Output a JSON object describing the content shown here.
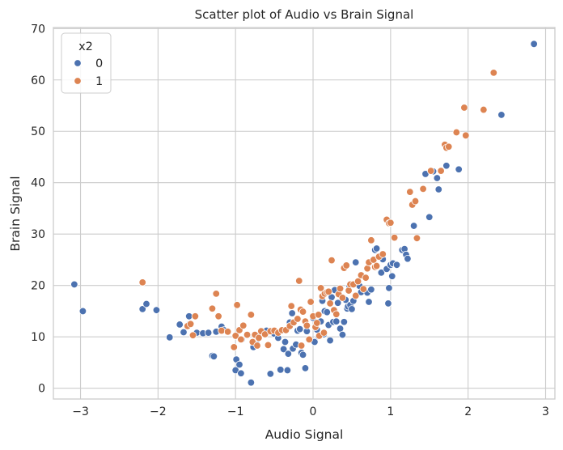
{
  "chart_data": {
    "type": "scatter",
    "title": "Scatter plot of Audio vs Brain Signal",
    "xlabel": "Audio Signal",
    "ylabel": "Brain Signal",
    "xlim": [
      -3.35,
      3.12
    ],
    "ylim": [
      -2.1,
      70.2
    ],
    "xticks": [
      -3,
      -2,
      -1,
      0,
      1,
      2,
      3
    ],
    "xtick_labels": [
      "−3",
      "−2",
      "−1",
      "0",
      "1",
      "2",
      "3"
    ],
    "yticks": [
      0,
      10,
      20,
      30,
      40,
      50,
      60,
      70
    ],
    "ytick_labels": [
      "0",
      "10",
      "20",
      "30",
      "40",
      "50",
      "60",
      "70"
    ],
    "grid": true,
    "legend": {
      "title": "x2",
      "placement": "top-left"
    },
    "series": [
      {
        "name": "0",
        "color": "#4c72b0",
        "points": [
          [
            -3.08,
            20.2
          ],
          [
            -2.97,
            15.0
          ],
          [
            -2.2,
            15.4
          ],
          [
            -2.15,
            16.4
          ],
          [
            -2.02,
            15.2
          ],
          [
            -1.85,
            9.9
          ],
          [
            -1.72,
            12.4
          ],
          [
            -1.67,
            10.9
          ],
          [
            -1.6,
            14.0
          ],
          [
            -1.6,
            12.4
          ],
          [
            -1.5,
            10.8
          ],
          [
            -1.42,
            10.7
          ],
          [
            -1.35,
            10.8
          ],
          [
            -1.3,
            6.3
          ],
          [
            -1.28,
            6.2
          ],
          [
            -1.25,
            11.0
          ],
          [
            -1.18,
            12.0
          ],
          [
            -1.15,
            11.3
          ],
          [
            -1.0,
            3.5
          ],
          [
            -0.99,
            5.6
          ],
          [
            -0.95,
            4.6
          ],
          [
            -0.93,
            2.9
          ],
          [
            -0.92,
            9.5
          ],
          [
            -0.8,
            1.1
          ],
          [
            -0.77,
            8.0
          ],
          [
            -0.72,
            8.5
          ],
          [
            -0.7,
            10.1
          ],
          [
            -0.6,
            11.2
          ],
          [
            -0.55,
            2.8
          ],
          [
            -0.5,
            10.6
          ],
          [
            -0.45,
            9.8
          ],
          [
            -0.42,
            3.6
          ],
          [
            -0.38,
            7.6
          ],
          [
            -0.36,
            9.0
          ],
          [
            -0.33,
            3.5
          ],
          [
            -0.32,
            6.7
          ],
          [
            -0.3,
            12.8
          ],
          [
            -0.27,
            14.6
          ],
          [
            -0.26,
            7.7
          ],
          [
            -0.22,
            8.5
          ],
          [
            -0.2,
            11.2
          ],
          [
            -0.17,
            11.5
          ],
          [
            -0.15,
            6.9
          ],
          [
            -0.13,
            6.5
          ],
          [
            -0.1,
            3.9
          ],
          [
            -0.08,
            11.1
          ],
          [
            0.0,
            13.7
          ],
          [
            0.02,
            9.0
          ],
          [
            0.05,
            11.4
          ],
          [
            0.07,
            10.1
          ],
          [
            0.1,
            13.0
          ],
          [
            0.12,
            17.0
          ],
          [
            0.14,
            10.5
          ],
          [
            0.15,
            15.0
          ],
          [
            0.18,
            14.8
          ],
          [
            0.2,
            12.3
          ],
          [
            0.22,
            9.3
          ],
          [
            0.24,
            17.7
          ],
          [
            0.26,
            12.9
          ],
          [
            0.28,
            19.1
          ],
          [
            0.3,
            13.0
          ],
          [
            0.32,
            16.6
          ],
          [
            0.35,
            11.6
          ],
          [
            0.38,
            10.4
          ],
          [
            0.4,
            12.9
          ],
          [
            0.42,
            17.2
          ],
          [
            0.44,
            15.5
          ],
          [
            0.45,
            15.9
          ],
          [
            0.47,
            19.9
          ],
          [
            0.48,
            16.2
          ],
          [
            0.5,
            15.4
          ],
          [
            0.52,
            17.0
          ],
          [
            0.55,
            24.5
          ],
          [
            0.6,
            19.9
          ],
          [
            0.62,
            18.7
          ],
          [
            0.7,
            18.6
          ],
          [
            0.72,
            16.8
          ],
          [
            0.75,
            19.2
          ],
          [
            0.8,
            26.9
          ],
          [
            0.82,
            27.2
          ],
          [
            0.88,
            22.5
          ],
          [
            0.9,
            25.1
          ],
          [
            0.95,
            23.2
          ],
          [
            0.97,
            16.5
          ],
          [
            0.98,
            19.5
          ],
          [
            1.0,
            24.0
          ],
          [
            1.02,
            21.8
          ],
          [
            1.03,
            24.3
          ],
          [
            1.08,
            24.0
          ],
          [
            1.15,
            26.9
          ],
          [
            1.18,
            27.1
          ],
          [
            1.2,
            26.0
          ],
          [
            1.22,
            25.2
          ],
          [
            1.3,
            31.6
          ],
          [
            1.45,
            41.7
          ],
          [
            1.5,
            33.3
          ],
          [
            1.55,
            42.2
          ],
          [
            1.6,
            40.9
          ],
          [
            1.62,
            38.7
          ],
          [
            1.72,
            43.3
          ],
          [
            1.88,
            42.6
          ],
          [
            2.43,
            53.2
          ],
          [
            2.85,
            67.0
          ]
        ]
      },
      {
        "name": "1",
        "color": "#dd8452",
        "points": [
          [
            -2.2,
            20.6
          ],
          [
            -1.62,
            12.1
          ],
          [
            -1.58,
            12.5
          ],
          [
            -1.52,
            14.0
          ],
          [
            -1.55,
            10.3
          ],
          [
            -1.3,
            15.5
          ],
          [
            -1.25,
            18.4
          ],
          [
            -1.22,
            14.0
          ],
          [
            -1.18,
            11.2
          ],
          [
            -1.1,
            11.0
          ],
          [
            -1.02,
            8.0
          ],
          [
            -1.0,
            10.2
          ],
          [
            -0.98,
            16.2
          ],
          [
            -0.95,
            11.3
          ],
          [
            -0.93,
            9.5
          ],
          [
            -0.9,
            12.2
          ],
          [
            -0.85,
            10.4
          ],
          [
            -0.8,
            14.3
          ],
          [
            -0.78,
            9.0
          ],
          [
            -0.75,
            10.4
          ],
          [
            -0.72,
            8.3
          ],
          [
            -0.7,
            9.8
          ],
          [
            -0.67,
            11.1
          ],
          [
            -0.62,
            10.5
          ],
          [
            -0.58,
            8.4
          ],
          [
            -0.55,
            11.1
          ],
          [
            -0.5,
            11.2
          ],
          [
            -0.45,
            10.8
          ],
          [
            -0.4,
            11.3
          ],
          [
            -0.35,
            11.3
          ],
          [
            -0.3,
            12.1
          ],
          [
            -0.28,
            16.0
          ],
          [
            -0.25,
            12.8
          ],
          [
            -0.2,
            13.5
          ],
          [
            -0.18,
            20.9
          ],
          [
            -0.16,
            15.3
          ],
          [
            -0.15,
            8.3
          ],
          [
            -0.13,
            14.9
          ],
          [
            -0.1,
            13.0
          ],
          [
            -0.08,
            12.2
          ],
          [
            -0.05,
            9.5
          ],
          [
            -0.03,
            16.8
          ],
          [
            0.0,
            14.0
          ],
          [
            0.03,
            11.9
          ],
          [
            0.05,
            12.7
          ],
          [
            0.07,
            14.3
          ],
          [
            0.08,
            10.2
          ],
          [
            0.1,
            19.5
          ],
          [
            0.12,
            17.9
          ],
          [
            0.14,
            10.8
          ],
          [
            0.15,
            18.4
          ],
          [
            0.18,
            18.7
          ],
          [
            0.2,
            18.8
          ],
          [
            0.22,
            16.5
          ],
          [
            0.24,
            24.9
          ],
          [
            0.27,
            15.2
          ],
          [
            0.3,
            14.4
          ],
          [
            0.33,
            18.3
          ],
          [
            0.35,
            19.4
          ],
          [
            0.38,
            17.6
          ],
          [
            0.4,
            23.4
          ],
          [
            0.43,
            23.9
          ],
          [
            0.46,
            19.0
          ],
          [
            0.48,
            20.2
          ],
          [
            0.52,
            20.2
          ],
          [
            0.55,
            18.0
          ],
          [
            0.58,
            20.8
          ],
          [
            0.62,
            22.0
          ],
          [
            0.65,
            19.3
          ],
          [
            0.68,
            21.5
          ],
          [
            0.7,
            23.3
          ],
          [
            0.72,
            24.5
          ],
          [
            0.75,
            28.8
          ],
          [
            0.78,
            25.0
          ],
          [
            0.8,
            23.6
          ],
          [
            0.82,
            23.8
          ],
          [
            0.85,
            25.6
          ],
          [
            0.9,
            26.1
          ],
          [
            0.95,
            32.8
          ],
          [
            0.98,
            32.1
          ],
          [
            1.0,
            32.2
          ],
          [
            1.05,
            29.3
          ],
          [
            1.25,
            38.2
          ],
          [
            1.28,
            35.7
          ],
          [
            1.32,
            36.4
          ],
          [
            1.34,
            29.2
          ],
          [
            1.42,
            38.8
          ],
          [
            1.52,
            42.3
          ],
          [
            1.65,
            42.3
          ],
          [
            1.7,
            47.4
          ],
          [
            1.72,
            46.8
          ],
          [
            1.75,
            47.0
          ],
          [
            1.85,
            49.8
          ],
          [
            1.95,
            54.6
          ],
          [
            1.97,
            49.2
          ],
          [
            2.2,
            54.2
          ],
          [
            2.33,
            61.4
          ]
        ]
      }
    ]
  }
}
